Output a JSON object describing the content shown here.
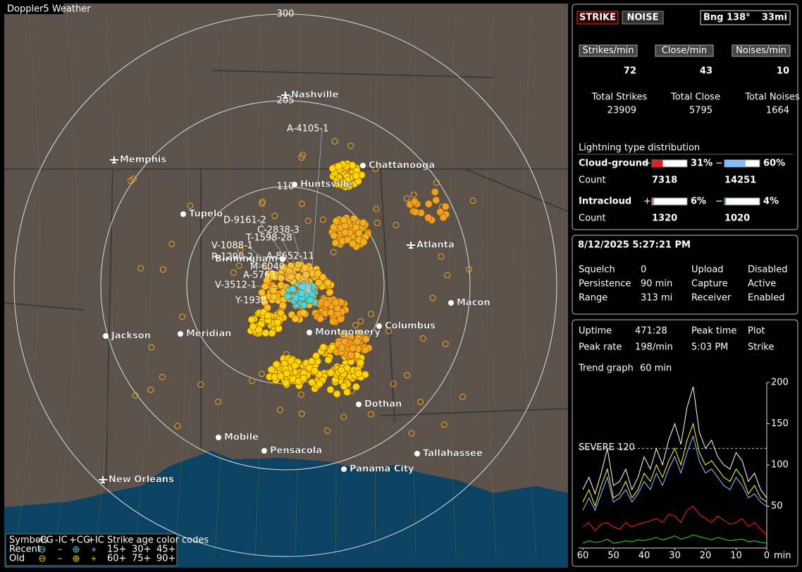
{
  "map": {
    "title": "Doppler5 Weather",
    "range_labels": [
      "300",
      "205",
      "110"
    ],
    "cities": [
      "Nashville",
      "Memphis",
      "Chattanooga",
      "Huntsville",
      "Tupelo",
      "Birmingham",
      "Atlanta",
      "Macon",
      "Jackson",
      "Meridian",
      "Montgomery",
      "Columbus",
      "Dothan",
      "Mobile",
      "Pensacola",
      "Tallahassee",
      "Panama City",
      "New Orleans"
    ],
    "storm_labels": [
      "A-4105-1",
      "D-9161-2",
      "C-2838-3",
      "T-1598-28",
      "V-1088-1",
      "R-1290-2",
      "A-8652-11",
      "M-6040",
      "A-5763",
      "V-3512-1",
      "Y-1938"
    ],
    "legend": {
      "symbols_label": "Symbols",
      "symbol_types": [
        "-CG",
        "-IC",
        "+CG",
        "+IC"
      ],
      "age_label": "Strike age color codes",
      "rows": [
        "Recent",
        "Old"
      ],
      "recent_ages": [
        "15+",
        "30+",
        "45+"
      ],
      "old_ages": [
        "60+",
        "75+",
        "90+"
      ]
    }
  },
  "status": {
    "strike_button": "STRIKE",
    "noise_button": "NOISE",
    "bearing": "Bng 138°",
    "distance": "33mi",
    "rate_headers": [
      "Strikes/min",
      "Close/min",
      "Noises/min"
    ],
    "rates": [
      72,
      43,
      10
    ],
    "total_labels": [
      "Total Strikes",
      "Total Close",
      "Total Noises"
    ],
    "totals": [
      23909,
      5795,
      1664
    ]
  },
  "distribution": {
    "title": "Lightning type distribution",
    "count_label": "Count",
    "rows": [
      {
        "name": "Cloud-ground",
        "plus": "+",
        "minus": "−",
        "plus_pct": {
          "value": 31,
          "label": "31%"
        },
        "minus_pct": {
          "value": 60,
          "label": "60%"
        },
        "plus_count": 7318,
        "minus_count": 14251
      },
      {
        "name": "Intracloud",
        "plus": "+",
        "minus": "−",
        "plus_pct": {
          "value": 6,
          "label": "6%"
        },
        "minus_pct": {
          "value": 4,
          "label": "4%"
        },
        "plus_count": 1320,
        "minus_count": 1020
      }
    ]
  },
  "settings": {
    "datetime": "8/12/2025 5:27:21 PM",
    "rows": [
      [
        "Squelch",
        "0",
        "Upload",
        "Disabled"
      ],
      [
        "Persistence",
        "90 min",
        "Capture",
        "Active"
      ],
      [
        "Range",
        "313 mi",
        "Receiver",
        "Enabled"
      ]
    ]
  },
  "stats": {
    "rows": [
      [
        "Uptime",
        "471:28",
        "Peak time",
        "5:03 PM",
        "Plot"
      ],
      [
        "Peak rate",
        "198/min",
        "5:03 PM",
        "Strike"
      ]
    ],
    "trend_label": "Trend graph",
    "trend_value": "60 min"
  },
  "trend_graph": {
    "type": "line",
    "xlim": [
      60,
      0
    ],
    "ylim": [
      0,
      200
    ],
    "xticks": [
      60,
      50,
      40,
      30,
      20,
      10,
      0
    ],
    "yticks": [
      50,
      100,
      150,
      200
    ],
    "xlabel": "min",
    "severe_line": {
      "value": 120,
      "label": "SEVERE 120"
    },
    "x": [
      60,
      58,
      56,
      54,
      52,
      50,
      48,
      46,
      44,
      42,
      40,
      38,
      36,
      34,
      32,
      30,
      28,
      26,
      24,
      22,
      20,
      18,
      16,
      14,
      12,
      10,
      8,
      6,
      4,
      2,
      0
    ],
    "series": [
      {
        "color": "#8ec8ff",
        "values": [
          45,
          60,
          45,
          65,
          85,
          55,
          60,
          70,
          55,
          65,
          80,
          70,
          90,
          75,
          95,
          110,
          90,
          115,
          135,
          105,
          90,
          95,
          85,
          75,
          70,
          85,
          75,
          60,
          65,
          55,
          50
        ]
      },
      {
        "color": "#ffffff",
        "values": [
          70,
          85,
          65,
          90,
          120,
          75,
          80,
          95,
          70,
          85,
          110,
          95,
          120,
          100,
          130,
          150,
          125,
          170,
          195,
          140,
          120,
          130,
          110,
          100,
          95,
          115,
          105,
          80,
          90,
          70,
          60
        ]
      },
      {
        "color": "#ffff40",
        "values": [
          55,
          70,
          50,
          75,
          95,
          60,
          65,
          80,
          60,
          70,
          90,
          80,
          100,
          85,
          105,
          120,
          100,
          130,
          150,
          115,
          100,
          105,
          95,
          85,
          80,
          95,
          85,
          65,
          75,
          60,
          55
        ]
      },
      {
        "color": "#ff2020",
        "values": [
          25,
          30,
          20,
          28,
          30,
          25,
          22,
          30,
          25,
          28,
          30,
          32,
          35,
          30,
          40,
          38,
          30,
          45,
          50,
          40,
          35,
          30,
          38,
          33,
          28,
          30,
          35,
          25,
          30,
          22,
          15
        ]
      },
      {
        "color": "#30e030",
        "values": [
          5,
          8,
          6,
          7,
          10,
          5,
          6,
          8,
          7,
          9,
          8,
          10,
          12,
          9,
          11,
          14,
          10,
          12,
          15,
          13,
          11,
          9,
          12,
          10,
          8,
          9,
          10,
          7,
          8,
          6,
          5
        ]
      }
    ]
  }
}
